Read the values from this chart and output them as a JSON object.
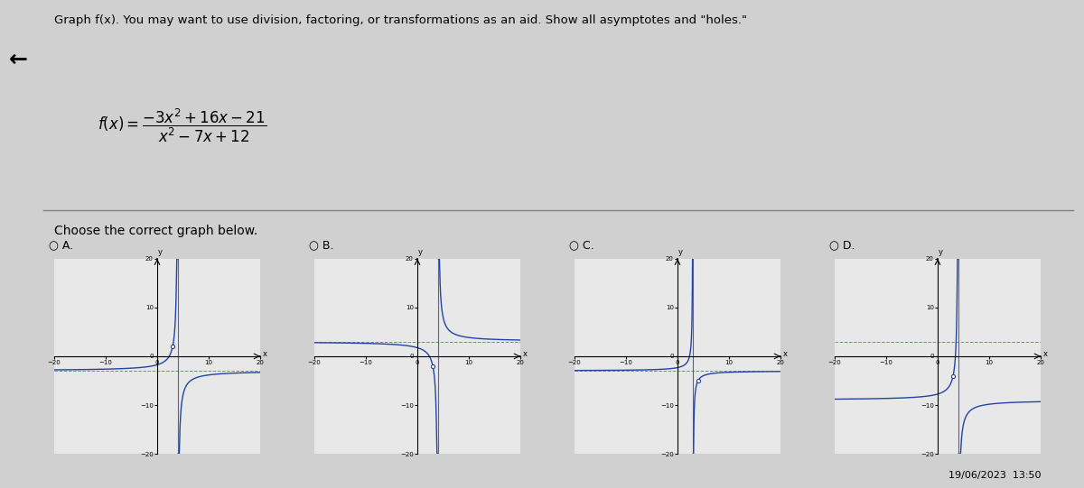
{
  "title_text": "Graph f(x). You may want to use division, factoring, or transformations as an aid. Show all asymptotes and \"holes.\"",
  "choose_text": "Choose the correct graph below.",
  "options": [
    "A.",
    "B.",
    "C.",
    "D."
  ],
  "background_color": "#d0d0d0",
  "plot_bg": "#e8e8e8",
  "xmin": -20,
  "xmax": 20,
  "ymin": -20,
  "ymax": 20,
  "graph_line_color": "#2244aa",
  "asymptote_color": "#2244aa",
  "hole_color": "white",
  "timestamp": "19/06/2023  13:50"
}
